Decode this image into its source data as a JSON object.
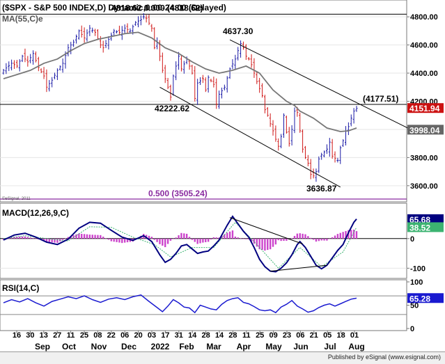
{
  "chart_data": [
    {
      "type": "candlestick",
      "panel": "price",
      "title": "($SPX - S&P 500 INDEX,D) Dynamic,0:00-24:00 (Delayed)",
      "indicator_label": "MA(55,C)e",
      "y_ticks": [
        "4800.00",
        "4600.00",
        "4400.00",
        "4200.00",
        "4000.00",
        "3800.00",
        "3600.00"
      ],
      "ylim": [
        3520,
        4880
      ],
      "last_price": "4151.94",
      "ma_value": "3998.04",
      "annotations": [
        "4818.62  0.000 (4818.62)",
        "4637.30",
        "42222.62",
        "(4177.51)",
        "0.500 (3505.24)",
        "3636.87"
      ],
      "small_label": "©eSignal, 2011",
      "colors": {
        "up": "#1a1aa6",
        "down": "#d01818",
        "ma": "#777777",
        "fib": "#8a2ba0"
      },
      "price_path": [
        [
          0,
          4420
        ],
        [
          3,
          4470
        ],
        [
          5,
          4450
        ],
        [
          7,
          4520
        ],
        [
          9,
          4480
        ],
        [
          11,
          4540
        ],
        [
          13,
          4440
        ],
        [
          15,
          4380
        ],
        [
          16,
          4300
        ],
        [
          18,
          4350
        ],
        [
          20,
          4420
        ],
        [
          22,
          4470
        ],
        [
          24,
          4580
        ],
        [
          26,
          4620
        ],
        [
          28,
          4700
        ],
        [
          30,
          4650
        ],
        [
          32,
          4720
        ],
        [
          34,
          4690
        ],
        [
          36,
          4600
        ],
        [
          37,
          4580
        ],
        [
          39,
          4640
        ],
        [
          41,
          4700
        ],
        [
          43,
          4690
        ],
        [
          45,
          4720
        ],
        [
          47,
          4700
        ],
        [
          49,
          4760
        ],
        [
          51,
          4780
        ],
        [
          52,
          4800
        ],
        [
          53,
          4790
        ],
        [
          55,
          4720
        ],
        [
          56,
          4580
        ],
        [
          57,
          4620
        ],
        [
          59,
          4420
        ],
        [
          61,
          4300
        ],
        [
          62,
          4230
        ],
        [
          63,
          4380
        ],
        [
          65,
          4520
        ],
        [
          66,
          4430
        ],
        [
          68,
          4500
        ],
        [
          70,
          4400
        ],
        [
          71,
          4220
        ],
        [
          72,
          4330
        ],
        [
          74,
          4360
        ],
        [
          75,
          4280
        ],
        [
          76,
          4370
        ],
        [
          78,
          4320
        ],
        [
          79,
          4180
        ],
        [
          80,
          4250
        ],
        [
          82,
          4300
        ],
        [
          84,
          4430
        ],
        [
          86,
          4500
        ],
        [
          87,
          4560
        ],
        [
          88,
          4610
        ],
        [
          89,
          4580
        ],
        [
          90,
          4520
        ],
        [
          91,
          4500
        ],
        [
          92,
          4460
        ],
        [
          93,
          4400
        ],
        [
          94,
          4340
        ],
        [
          96,
          4240
        ],
        [
          97,
          4140
        ],
        [
          98,
          4100
        ],
        [
          99,
          4040
        ],
        [
          100,
          3990
        ],
        [
          101,
          3930
        ],
        [
          102,
          3880
        ],
        [
          103,
          3950
        ],
        [
          104,
          4100
        ],
        [
          105,
          3980
        ],
        [
          106,
          3900
        ],
        [
          107,
          4000
        ],
        [
          108,
          4130
        ],
        [
          109,
          4120
        ],
        [
          110,
          3990
        ],
        [
          111,
          3860
        ],
        [
          112,
          3800
        ],
        [
          113,
          3760
        ],
        [
          114,
          3680
        ],
        [
          115,
          3670
        ],
        [
          116,
          3700
        ],
        [
          117,
          3790
        ],
        [
          118,
          3820
        ],
        [
          120,
          3860
        ],
        [
          121,
          3910
        ],
        [
          122,
          3810
        ],
        [
          124,
          3780
        ],
        [
          125,
          3870
        ],
        [
          126,
          3920
        ],
        [
          127,
          3990
        ],
        [
          128,
          4020
        ],
        [
          129,
          4080
        ],
        [
          130,
          4130
        ],
        [
          131,
          4150
        ]
      ],
      "ma_path": [
        [
          0,
          4360
        ],
        [
          5,
          4390
        ],
        [
          10,
          4420
        ],
        [
          15,
          4470
        ],
        [
          20,
          4500
        ],
        [
          25,
          4560
        ],
        [
          30,
          4610
        ],
        [
          35,
          4640
        ],
        [
          40,
          4660
        ],
        [
          45,
          4680
        ],
        [
          50,
          4690
        ],
        [
          55,
          4650
        ],
        [
          60,
          4580
        ],
        [
          65,
          4540
        ],
        [
          70,
          4480
        ],
        [
          75,
          4430
        ],
        [
          80,
          4400
        ],
        [
          85,
          4420
        ],
        [
          90,
          4450
        ],
        [
          95,
          4400
        ],
        [
          100,
          4280
        ],
        [
          105,
          4200
        ],
        [
          108,
          4170
        ],
        [
          110,
          4130
        ],
        [
          115,
          4080
        ],
        [
          120,
          4010
        ],
        [
          125,
          3985
        ],
        [
          128,
          3990
        ],
        [
          131,
          4010
        ]
      ],
      "trendlines": [
        {
          "from": [
            84,
            4637
          ],
          "to": [
            150,
            4010
          ]
        },
        {
          "from": [
            58,
            4300
          ],
          "to": [
            125,
            3590
          ]
        }
      ],
      "horizontal_levels": [
        4818.62,
        4177.51,
        3505.24
      ]
    },
    {
      "type": "line",
      "panel": "macd",
      "indicator_label": "MACD(12,26,9,C)",
      "y_ticks": [
        "0",
        "-100"
      ],
      "ylim": [
        -125,
        110
      ],
      "values": {
        "macd": "65.68",
        "signal": "38.52"
      },
      "colors": {
        "macd": "#000080",
        "signal": "#3cb371",
        "hist": "#cc44cc"
      },
      "macd_path": [
        [
          0,
          -5
        ],
        [
          4,
          12
        ],
        [
          8,
          18
        ],
        [
          12,
          5
        ],
        [
          16,
          -12
        ],
        [
          20,
          -20
        ],
        [
          24,
          -2
        ],
        [
          28,
          35
        ],
        [
          32,
          55
        ],
        [
          36,
          52
        ],
        [
          40,
          28
        ],
        [
          44,
          5
        ],
        [
          48,
          -6
        ],
        [
          52,
          10
        ],
        [
          55,
          -10
        ],
        [
          58,
          -55
        ],
        [
          60,
          -80
        ],
        [
          62,
          -70
        ],
        [
          64,
          -50
        ],
        [
          66,
          -25
        ],
        [
          68,
          -20
        ],
        [
          70,
          -35
        ],
        [
          72,
          -50
        ],
        [
          74,
          -45
        ],
        [
          76,
          -42
        ],
        [
          78,
          -25
        ],
        [
          80,
          -5
        ],
        [
          83,
          45
        ],
        [
          85,
          75
        ],
        [
          87,
          50
        ],
        [
          89,
          25
        ],
        [
          91,
          5
        ],
        [
          93,
          -30
        ],
        [
          95,
          -70
        ],
        [
          97,
          -95
        ],
        [
          99,
          -110
        ],
        [
          101,
          -112
        ],
        [
          103,
          -100
        ],
        [
          105,
          -82
        ],
        [
          107,
          -55
        ],
        [
          109,
          -20
        ],
        [
          110,
          -10
        ],
        [
          112,
          -30
        ],
        [
          114,
          -60
        ],
        [
          116,
          -90
        ],
        [
          118,
          -102
        ],
        [
          120,
          -90
        ],
        [
          122,
          -65
        ],
        [
          124,
          -40
        ],
        [
          126,
          -20
        ],
        [
          128,
          20
        ],
        [
          130,
          55
        ],
        [
          131,
          66
        ]
      ],
      "signal_path": [
        [
          0,
          0
        ],
        [
          8,
          10
        ],
        [
          16,
          0
        ],
        [
          24,
          -8
        ],
        [
          32,
          40
        ],
        [
          40,
          38
        ],
        [
          48,
          5
        ],
        [
          56,
          -20
        ],
        [
          62,
          -62
        ],
        [
          70,
          -30
        ],
        [
          78,
          -30
        ],
        [
          86,
          55
        ],
        [
          94,
          -20
        ],
        [
          102,
          -100
        ],
        [
          110,
          -30
        ],
        [
          118,
          -95
        ],
        [
          126,
          -45
        ],
        [
          131,
          38
        ]
      ],
      "trendlines": [
        {
          "from": [
            84,
            71
          ],
          "to": [
            111,
            -18
          ]
        },
        {
          "from": [
            99,
            -110
          ],
          "to": [
            120,
            -90
          ]
        }
      ]
    },
    {
      "type": "line",
      "panel": "rsi",
      "indicator_label": "RSI(14,C)",
      "y_ticks": [
        "100",
        "50",
        "0"
      ],
      "ylim": [
        0,
        100
      ],
      "value": "65.28",
      "levels": [
        70,
        30
      ],
      "colors": {
        "rsi": "#1a1ad0"
      },
      "rsi_path": [
        [
          0,
          55
        ],
        [
          3,
          62
        ],
        [
          6,
          57
        ],
        [
          9,
          64
        ],
        [
          12,
          55
        ],
        [
          15,
          48
        ],
        [
          18,
          58
        ],
        [
          21,
          63
        ],
        [
          24,
          68
        ],
        [
          27,
          64
        ],
        [
          30,
          70
        ],
        [
          33,
          62
        ],
        [
          36,
          56
        ],
        [
          39,
          63
        ],
        [
          42,
          66
        ],
        [
          45,
          62
        ],
        [
          48,
          68
        ],
        [
          51,
          72
        ],
        [
          54,
          58
        ],
        [
          57,
          45
        ],
        [
          59,
          36
        ],
        [
          61,
          48
        ],
        [
          63,
          62
        ],
        [
          65,
          55
        ],
        [
          67,
          46
        ],
        [
          69,
          44
        ],
        [
          71,
          34
        ],
        [
          73,
          50
        ],
        [
          75,
          46
        ],
        [
          77,
          42
        ],
        [
          79,
          40
        ],
        [
          81,
          52
        ],
        [
          83,
          60
        ],
        [
          85,
          64
        ],
        [
          87,
          66
        ],
        [
          89,
          56
        ],
        [
          91,
          53
        ],
        [
          93,
          47
        ],
        [
          95,
          40
        ],
        [
          97,
          38
        ],
        [
          99,
          40
        ],
        [
          101,
          34
        ],
        [
          103,
          46
        ],
        [
          105,
          52
        ],
        [
          107,
          60
        ],
        [
          109,
          48
        ],
        [
          111,
          42
        ],
        [
          113,
          35
        ],
        [
          115,
          38
        ],
        [
          117,
          45
        ],
        [
          119,
          50
        ],
        [
          121,
          53
        ],
        [
          123,
          48
        ],
        [
          125,
          53
        ],
        [
          127,
          58
        ],
        [
          129,
          63
        ],
        [
          131,
          65
        ]
      ]
    }
  ],
  "x_axis": {
    "day_ticks": [
      "16",
      "30",
      "13",
      "27",
      "11",
      "25",
      "08",
      "22",
      "06",
      "20",
      "03",
      "17",
      "31",
      "14",
      "28",
      "14",
      "28",
      "11",
      "25",
      "09",
      "23",
      "06",
      "21",
      "05",
      "18",
      "01"
    ],
    "month_labels": [
      "Sep",
      "Oct",
      "Nov",
      "Dec",
      "2022",
      "Feb",
      "Mar",
      "Apr",
      "May",
      "Jun",
      "Jul",
      "Aug"
    ]
  },
  "footer": "Published by eSignal (www.esignal.com)"
}
